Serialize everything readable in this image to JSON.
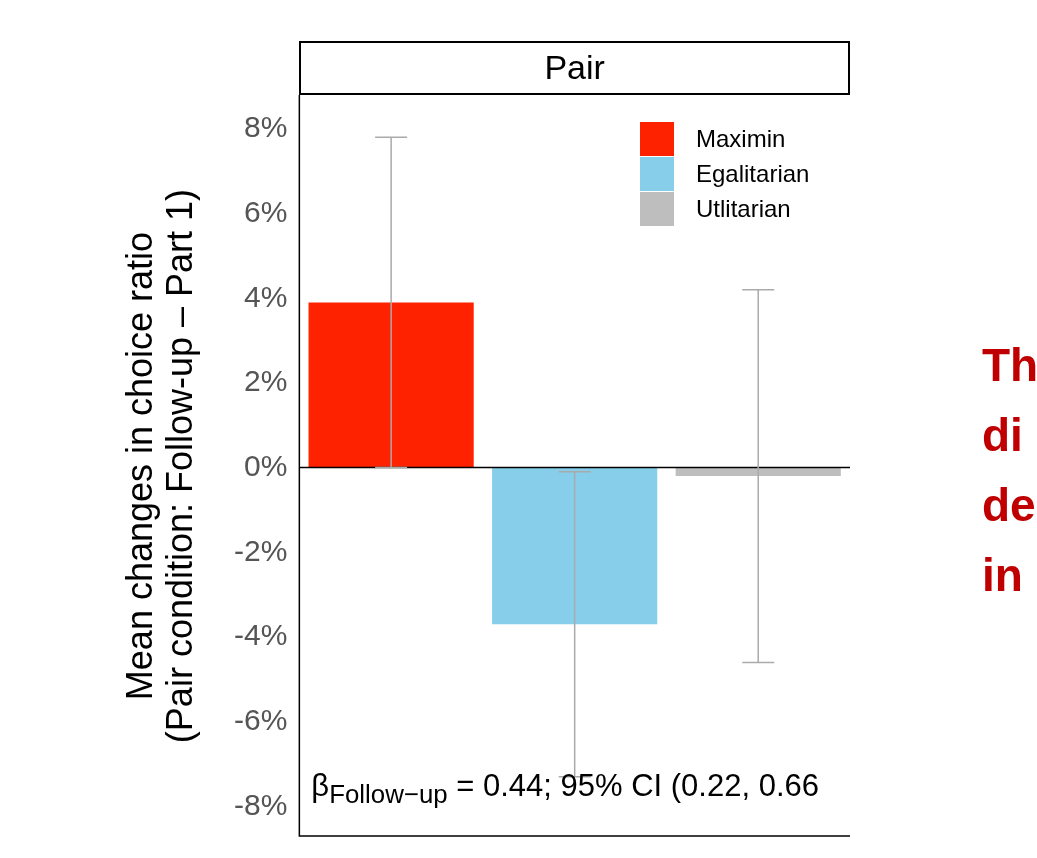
{
  "chart_data": {
    "type": "bar",
    "title": "Pair",
    "ylabel": "Mean changes in choice ratio\n(Pair condition: Follow-up – Part 1)",
    "categories": [
      null,
      null,
      null
    ],
    "series": [
      {
        "name": "Maximin",
        "color": "#ff2200",
        "values": [
          3.9,
          null,
          null
        ],
        "errors": [
          3.9,
          null,
          null
        ]
      },
      {
        "name": "Egalitarian",
        "color": "#87ceeb",
        "values": [
          null,
          -3.7,
          null
        ],
        "errors": [
          null,
          3.6,
          null
        ]
      },
      {
        "name": "Utlitarian",
        "color": "#bebebe",
        "values": [
          null,
          null,
          -0.2
        ],
        "errors": [
          null,
          null,
          4.4
        ]
      }
    ],
    "ylim": [
      -8.7,
      8.8
    ],
    "yticks": [
      {
        "value": -8,
        "label": "-8%"
      },
      {
        "value": -6,
        "label": "-6%"
      },
      {
        "value": -4,
        "label": "-4%"
      },
      {
        "value": -2,
        "label": "-2%"
      },
      {
        "value": 0,
        "label": "0%"
      },
      {
        "value": 2,
        "label": "2%"
      },
      {
        "value": 4,
        "label": "4%"
      },
      {
        "value": 6,
        "label": "6%"
      },
      {
        "value": 8,
        "label": "8%"
      }
    ],
    "ref_lines": [
      {
        "axis": "y",
        "value": 0
      }
    ],
    "grid": false,
    "legend": "top right",
    "annotations": [
      "β$_{Follow−up}$ = 0.44; 95% CI (0.22, 0.66",
      "Th\ndi\nde\nin"
    ]
  }
}
